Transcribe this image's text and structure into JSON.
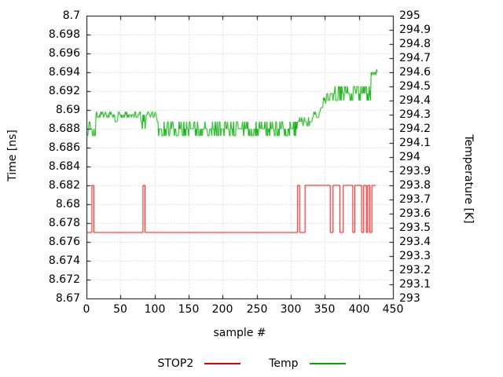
{
  "chart_data": {
    "type": "line",
    "title": "",
    "xlabel": "sample #",
    "ylabel": "Time [ns]",
    "y2label": "Temperature [K]",
    "xlim": [
      0,
      450
    ],
    "ylim": [
      8.67,
      8.7
    ],
    "y2lim": [
      293,
      295
    ],
    "grid": true,
    "legend_position": "bottom-center",
    "x_tick_values": [
      0,
      50,
      100,
      150,
      200,
      250,
      300,
      350,
      400,
      450
    ],
    "x_tick_labels": [
      "0",
      "50",
      "100",
      "150",
      "200",
      "250",
      "300",
      "350",
      "400",
      "450"
    ],
    "left_tick_values": [
      8.67,
      8.672,
      8.674,
      8.676,
      8.678,
      8.68,
      8.682,
      8.684,
      8.686,
      8.688,
      8.69,
      8.692,
      8.694,
      8.696,
      8.698,
      8.7
    ],
    "left_tick_labels": [
      "8.67",
      "8.672",
      "8.674",
      "8.676",
      "8.678",
      "8.68",
      "8.682",
      "8.684",
      "8.686",
      "8.688",
      "8.69",
      "8.692",
      "8.694",
      "8.696",
      "8.698",
      "8.7"
    ],
    "right_tick_values": [
      293,
      293.1,
      293.2,
      293.3,
      293.4,
      293.5,
      293.6,
      293.7,
      293.8,
      293.9,
      294,
      294.1,
      294.2,
      294.3,
      294.4,
      294.5,
      294.6,
      294.7,
      294.8,
      294.9,
      295
    ],
    "right_tick_labels": [
      "293",
      "293.1",
      "293.2",
      "293.3",
      "293.4",
      "293.5",
      "293.6",
      "293.7",
      "293.8",
      "293.9",
      "294",
      "294.1",
      "294.2",
      "294.3",
      "294.4",
      "294.5",
      "294.6",
      "294.7",
      "294.8",
      "294.9",
      "295"
    ],
    "colors": {
      "stop2": "#dd0000",
      "temp": "#00a800",
      "grid": "#cccccc",
      "axis": "#000000",
      "text": "#000000"
    },
    "series": [
      {
        "name": "STOP2",
        "axis": "left",
        "color_key": "stop2",
        "style": "steps",
        "segments": [
          [
            0,
            8,
            8.677
          ],
          [
            8,
            11,
            8.682
          ],
          [
            11,
            83,
            8.677
          ],
          [
            83,
            86,
            8.682
          ],
          [
            86,
            310,
            8.677
          ],
          [
            310,
            313,
            8.682
          ],
          [
            313,
            321,
            8.677
          ],
          [
            321,
            358,
            8.682
          ],
          [
            358,
            362,
            8.677
          ],
          [
            362,
            372,
            8.682
          ],
          [
            372,
            377,
            8.677
          ],
          [
            377,
            391,
            8.682
          ],
          [
            391,
            394,
            8.677
          ],
          [
            394,
            404,
            8.682
          ],
          [
            404,
            407,
            8.677
          ],
          [
            407,
            411,
            8.682
          ],
          [
            411,
            413,
            8.677
          ],
          [
            413,
            416,
            8.682
          ],
          [
            416,
            419,
            8.677
          ],
          [
            419,
            425,
            8.682
          ]
        ]
      },
      {
        "name": "Temp",
        "axis": "right",
        "color_key": "temp",
        "style": "noisy-steps",
        "noise_seed": 7,
        "segments": [
          [
            0,
            4,
            294.15,
            0.05
          ],
          [
            4,
            14,
            294.2,
            0.05
          ],
          [
            14,
            42,
            294.3,
            0.02
          ],
          [
            42,
            46,
            294.25,
            0
          ],
          [
            46,
            80,
            294.3,
            0.02
          ],
          [
            80,
            88,
            294.25,
            0.05
          ],
          [
            88,
            104,
            294.3,
            0.02
          ],
          [
            104,
            310,
            294.2,
            0.05
          ],
          [
            310,
            332,
            294.25,
            0.03
          ],
          [
            332,
            344,
            294.3,
            0.02
          ],
          [
            344,
            348,
            294.35,
            0
          ],
          [
            348,
            352,
            294.4,
            0.02
          ],
          [
            352,
            418,
            294.45,
            0.05
          ],
          [
            418,
            427,
            294.6,
            0.02
          ]
        ]
      }
    ]
  }
}
